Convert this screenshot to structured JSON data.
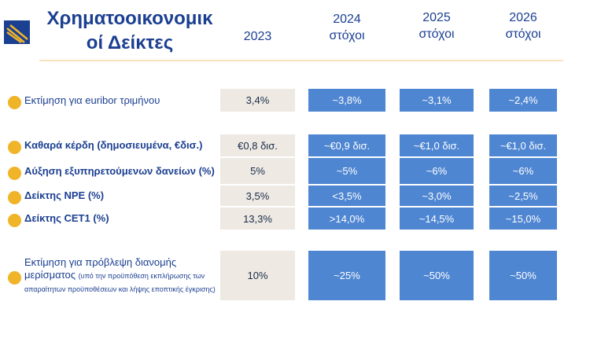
{
  "header": {
    "title_lines": [
      "Χρηματοοικονομικ",
      "οί Δείκτες"
    ],
    "columns": [
      [
        "2023"
      ],
      [
        "2024",
        "στόχοι"
      ],
      [
        "2025",
        "στόχοι"
      ],
      [
        "2026",
        "στόχοι"
      ]
    ]
  },
  "table": {
    "rows": [
      {
        "label": "Εκτίμηση για euribor τριμήνου",
        "bold": false,
        "cells": [
          "3,4%",
          "~3,8%",
          "~3,1%",
          "~2,4%"
        ]
      },
      {
        "label": "Καθαρά κέρδη (δημοσιευμένα, €δισ.)",
        "bold": true,
        "cells": [
          "€0,8 δισ.",
          "~€0,9 δισ.",
          "~€1,0 δισ.",
          "~€1,0 δισ."
        ]
      },
      {
        "label": "Αύξηση εξυπηρετούμενων δανείων (%)",
        "bold": true,
        "cells": [
          "5%",
          "~5%",
          "~6%",
          "~6%"
        ]
      },
      {
        "label": "Δείκτης NPE (%)",
        "bold": true,
        "cells": [
          "3,5%",
          "<3,5%",
          "~3,0%",
          "~2,5%"
        ]
      },
      {
        "label": "Δείκτης CET1 (%)",
        "bold": true,
        "cells": [
          "13,3%",
          ">14,0%",
          "~14,5%",
          "~15,0%"
        ]
      },
      {
        "label": "Εκτίμηση για πρόβλεψη διανομής μερίσματος",
        "note": "(υπό την προϋπόθεση εκπλήρωσης των απαραίτητων προϋποθέσεων και λήψης εποπτικής έγκρισης)",
        "bold": false,
        "cells": [
          "10%",
          "~25%",
          "~50%",
          "~50%"
        ]
      }
    ]
  }
}
